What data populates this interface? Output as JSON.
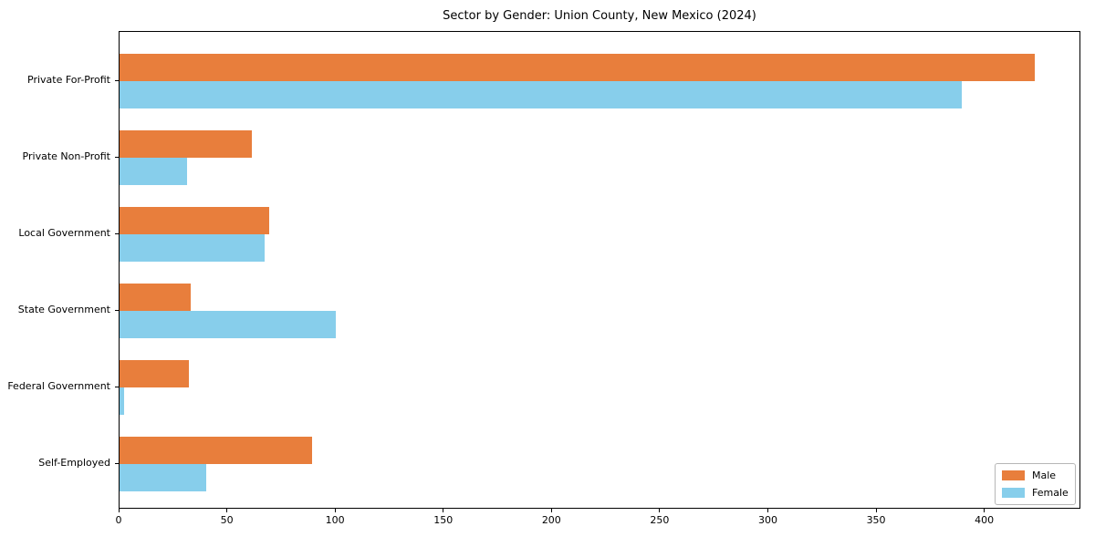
{
  "chart_data": {
    "type": "bar",
    "orientation": "horizontal",
    "title": "Sector by Gender: Union County, New Mexico (2024)",
    "categories": [
      "Private For-Profit",
      "Private Non-Profit",
      "Local Government",
      "State Government",
      "Federal Government",
      "Self-Employed"
    ],
    "series": [
      {
        "name": "Male",
        "color": "#E87E3C",
        "values": [
          423,
          61,
          69,
          33,
          32,
          89
        ]
      },
      {
        "name": "Female",
        "color": "#87CEEB",
        "values": [
          389,
          31,
          67,
          100,
          2,
          40
        ]
      }
    ],
    "xlabel": "",
    "ylabel": "",
    "xlim": [
      0,
      444
    ],
    "x_ticks": [
      0,
      50,
      100,
      150,
      200,
      250,
      300,
      350,
      400
    ],
    "grid": false,
    "legend_position": "lower right"
  }
}
